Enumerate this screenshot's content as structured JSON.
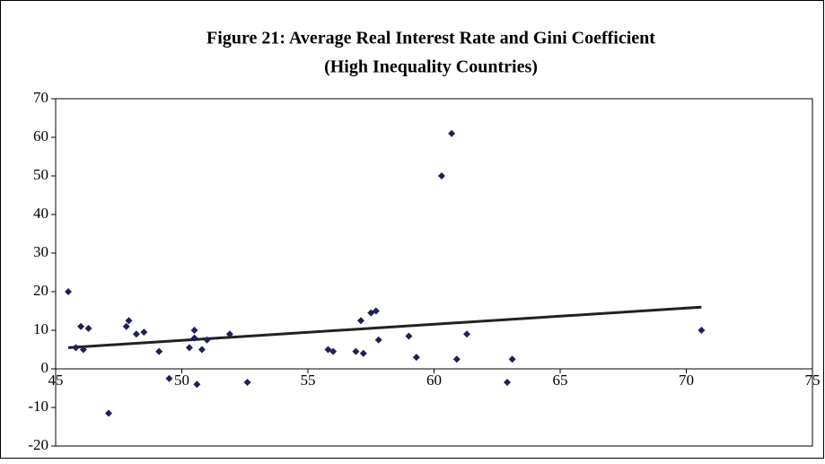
{
  "chart_data": {
    "type": "scatter",
    "title": "Figure 21: Average Real Interest Rate and Gini Coefficient",
    "subtitle": "(High Inequality Countries)",
    "x": [
      45.5,
      45.8,
      46.0,
      46.1,
      46.3,
      47.1,
      47.8,
      47.9,
      48.2,
      48.5,
      49.1,
      49.5,
      50.3,
      50.5,
      50.5,
      50.6,
      50.8,
      51.0,
      51.9,
      52.6,
      55.8,
      56.0,
      56.9,
      57.1,
      57.2,
      57.5,
      57.7,
      57.8,
      59.0,
      59.3,
      60.3,
      60.7,
      60.9,
      61.3,
      62.9,
      63.1,
      70.6
    ],
    "values": [
      20,
      5.5,
      11,
      5,
      10.5,
      -11.5,
      11,
      12.5,
      9,
      9.5,
      4.5,
      -2.5,
      5.5,
      10,
      8,
      -4,
      5,
      7.5,
      9,
      -3.5,
      5,
      4.5,
      4.5,
      12.5,
      4,
      14.5,
      15,
      7.5,
      8.5,
      3,
      50,
      61,
      2.5,
      9,
      -3.5,
      2.5,
      10
    ],
    "color": "#1f1f5c",
    "trendline": {
      "x": [
        45.5,
        70.6
      ],
      "values": [
        5.5,
        16
      ],
      "color": "#222222"
    },
    "xlim": [
      45,
      75
    ],
    "xticks": [
      45,
      50,
      55,
      60,
      65,
      70,
      75
    ],
    "ylim": [
      -20,
      70
    ],
    "yticks": [
      -20,
      -10,
      0,
      10,
      20,
      30,
      40,
      50,
      60,
      70
    ],
    "grid": false
  }
}
